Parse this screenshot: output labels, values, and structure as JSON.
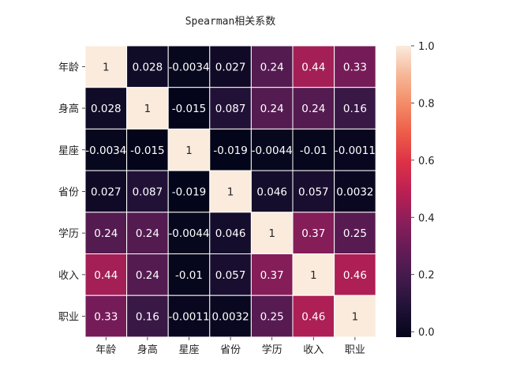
{
  "chart_data": {
    "type": "heatmap",
    "title": "Spearman相关系数",
    "xlabel": "",
    "ylabel": "",
    "x_categories": [
      "年龄",
      "身高",
      "星座",
      "省份",
      "学历",
      "收入",
      "职业"
    ],
    "y_categories": [
      "年龄",
      "身高",
      "星座",
      "省份",
      "学历",
      "收入",
      "职业"
    ],
    "matrix": [
      [
        1,
        0.028,
        -0.0034,
        0.027,
        0.24,
        0.44,
        0.33
      ],
      [
        0.028,
        1,
        -0.015,
        0.087,
        0.24,
        0.24,
        0.16
      ],
      [
        -0.0034,
        -0.015,
        1,
        -0.019,
        -0.0044,
        -0.01,
        -0.0011
      ],
      [
        0.027,
        0.087,
        -0.019,
        1,
        0.046,
        0.057,
        0.0032
      ],
      [
        0.24,
        0.24,
        -0.0044,
        0.046,
        1,
        0.37,
        0.25
      ],
      [
        0.44,
        0.24,
        -0.01,
        0.057,
        0.37,
        1,
        0.46
      ],
      [
        0.33,
        0.16,
        -0.0011,
        0.0032,
        0.25,
        0.46,
        1
      ]
    ],
    "cell_labels": [
      [
        "1",
        "0.028",
        "-0.0034",
        "0.027",
        "0.24",
        "0.44",
        "0.33"
      ],
      [
        "0.028",
        "1",
        "-0.015",
        "0.087",
        "0.24",
        "0.24",
        "0.16"
      ],
      [
        "-0.0034",
        "-0.015",
        "1",
        "-0.019",
        "-0.0044",
        "-0.01",
        "-0.0011"
      ],
      [
        "0.027",
        "0.087",
        "-0.019",
        "1",
        "0.046",
        "0.057",
        "0.0032"
      ],
      [
        "0.24",
        "0.24",
        "-0.0044",
        "0.046",
        "1",
        "0.37",
        "0.25"
      ],
      [
        "0.44",
        "0.24",
        "-0.01",
        "0.057",
        "0.37",
        "1",
        "0.46"
      ],
      [
        "0.33",
        "0.16",
        "-0.0011",
        "0.0032",
        "0.25",
        "0.46",
        "1"
      ]
    ],
    "colorbar": {
      "vmin": -0.019,
      "vmax": 1,
      "ticks": [
        0.0,
        0.2,
        0.4,
        0.6,
        0.8,
        1.0
      ],
      "tick_labels": [
        "0.0",
        "0.2",
        "0.4",
        "0.6",
        "0.8",
        "1.0"
      ],
      "colormap": "rocket",
      "placement": "right"
    },
    "cell_separator_color": "#ffffff",
    "grid": false
  }
}
